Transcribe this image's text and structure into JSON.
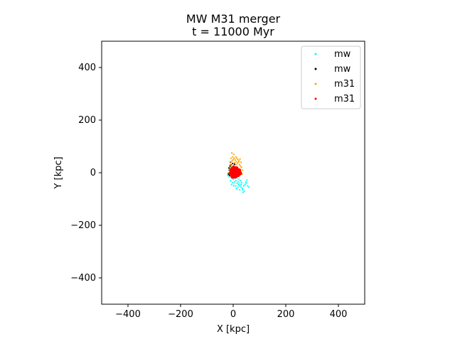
{
  "chart_data": {
    "type": "scatter",
    "title": [
      "MW M31 merger",
      "t = 11000 Myr"
    ],
    "xlabel": "X [kpc]",
    "ylabel": "Y [kpc]",
    "xlim": [
      -500,
      500
    ],
    "ylim": [
      -500,
      500
    ],
    "xticks": [
      -400,
      -200,
      0,
      200,
      400
    ],
    "yticks": [
      -400,
      -200,
      0,
      200,
      400
    ],
    "xtick_labels": [
      "−400",
      "−200",
      "0",
      "200",
      "400"
    ],
    "ytick_labels": [
      "−400",
      "−200",
      "0",
      "200",
      "400"
    ],
    "grid": false,
    "legend_position": "top-right",
    "series": [
      {
        "name": "mw",
        "color": "#00ffff",
        "points": [
          [
            -10,
            -30
          ],
          [
            -5,
            -20
          ],
          [
            0,
            -25
          ],
          [
            5,
            -35
          ],
          [
            10,
            -30
          ],
          [
            15,
            -40
          ],
          [
            20,
            -45
          ],
          [
            25,
            -50
          ],
          [
            30,
            -55
          ],
          [
            35,
            -60
          ],
          [
            40,
            -50
          ],
          [
            45,
            -45
          ],
          [
            50,
            -40
          ],
          [
            55,
            -50
          ],
          [
            60,
            -55
          ],
          [
            -15,
            -15
          ],
          [
            -20,
            -10
          ],
          [
            -18,
            0
          ],
          [
            -12,
            5
          ],
          [
            -8,
            -5
          ],
          [
            0,
            -10
          ],
          [
            8,
            -12
          ],
          [
            15,
            -20
          ],
          [
            22,
            -25
          ],
          [
            28,
            -30
          ],
          [
            32,
            -38
          ],
          [
            36,
            -65
          ],
          [
            38,
            -75
          ],
          [
            42,
            -70
          ],
          [
            12,
            -60
          ],
          [
            18,
            -55
          ],
          [
            25,
            -65
          ],
          [
            30,
            -45
          ],
          [
            48,
            -35
          ],
          [
            52,
            -28
          ],
          [
            -6,
            -45
          ],
          [
            2,
            -50
          ],
          [
            10,
            -50
          ],
          [
            -2,
            -38
          ],
          [
            20,
            -35
          ]
        ]
      },
      {
        "name": "mw",
        "color": "#000000",
        "points": [
          [
            -15,
            10
          ],
          [
            -10,
            15
          ],
          [
            -5,
            20
          ],
          [
            -12,
            25
          ],
          [
            -8,
            30
          ],
          [
            -3,
            5
          ],
          [
            0,
            12
          ],
          [
            -18,
            -5
          ],
          [
            -14,
            -10
          ],
          [
            -6,
            -15
          ],
          [
            2,
            25
          ],
          [
            5,
            32
          ],
          [
            -10,
            40
          ],
          [
            -2,
            35
          ],
          [
            -16,
            18
          ],
          [
            -4,
            -8
          ]
        ]
      },
      {
        "name": "m31",
        "color": "#ffa500",
        "points": [
          [
            -12,
            30
          ],
          [
            -8,
            40
          ],
          [
            -4,
            45
          ],
          [
            0,
            50
          ],
          [
            4,
            55
          ],
          [
            8,
            48
          ],
          [
            12,
            42
          ],
          [
            16,
            35
          ],
          [
            20,
            40
          ],
          [
            24,
            30
          ],
          [
            28,
            25
          ],
          [
            32,
            20
          ],
          [
            -2,
            60
          ],
          [
            2,
            70
          ],
          [
            -5,
            75
          ],
          [
            10,
            60
          ],
          [
            14,
            55
          ],
          [
            18,
            50
          ],
          [
            22,
            45
          ],
          [
            -10,
            20
          ],
          [
            -14,
            12
          ],
          [
            -16,
            0
          ],
          [
            36,
            10
          ],
          [
            34,
            -5
          ],
          [
            6,
            38
          ],
          [
            10,
            30
          ],
          [
            -6,
            28
          ],
          [
            26,
            52
          ],
          [
            30,
            40
          ],
          [
            -8,
            55
          ]
        ]
      },
      {
        "name": "m31",
        "color": "#ff0000",
        "points": [
          [
            0,
            0
          ],
          [
            5,
            5
          ],
          [
            10,
            0
          ],
          [
            5,
            -5
          ],
          [
            15,
            5
          ],
          [
            10,
            10
          ],
          [
            0,
            10
          ],
          [
            -5,
            5
          ],
          [
            -5,
            -5
          ],
          [
            0,
            -10
          ],
          [
            10,
            -10
          ],
          [
            15,
            -5
          ],
          [
            20,
            0
          ],
          [
            15,
            10
          ],
          [
            5,
            15
          ],
          [
            -5,
            10
          ],
          [
            18,
            -8
          ],
          [
            22,
            8
          ],
          [
            2,
            18
          ],
          [
            -8,
            -2
          ],
          [
            12,
            16
          ],
          [
            25,
            -2
          ],
          [
            7,
            -14
          ],
          [
            -2,
            -14
          ]
        ]
      }
    ],
    "legend": [
      "mw",
      "mw",
      "m31",
      "m31"
    ]
  }
}
